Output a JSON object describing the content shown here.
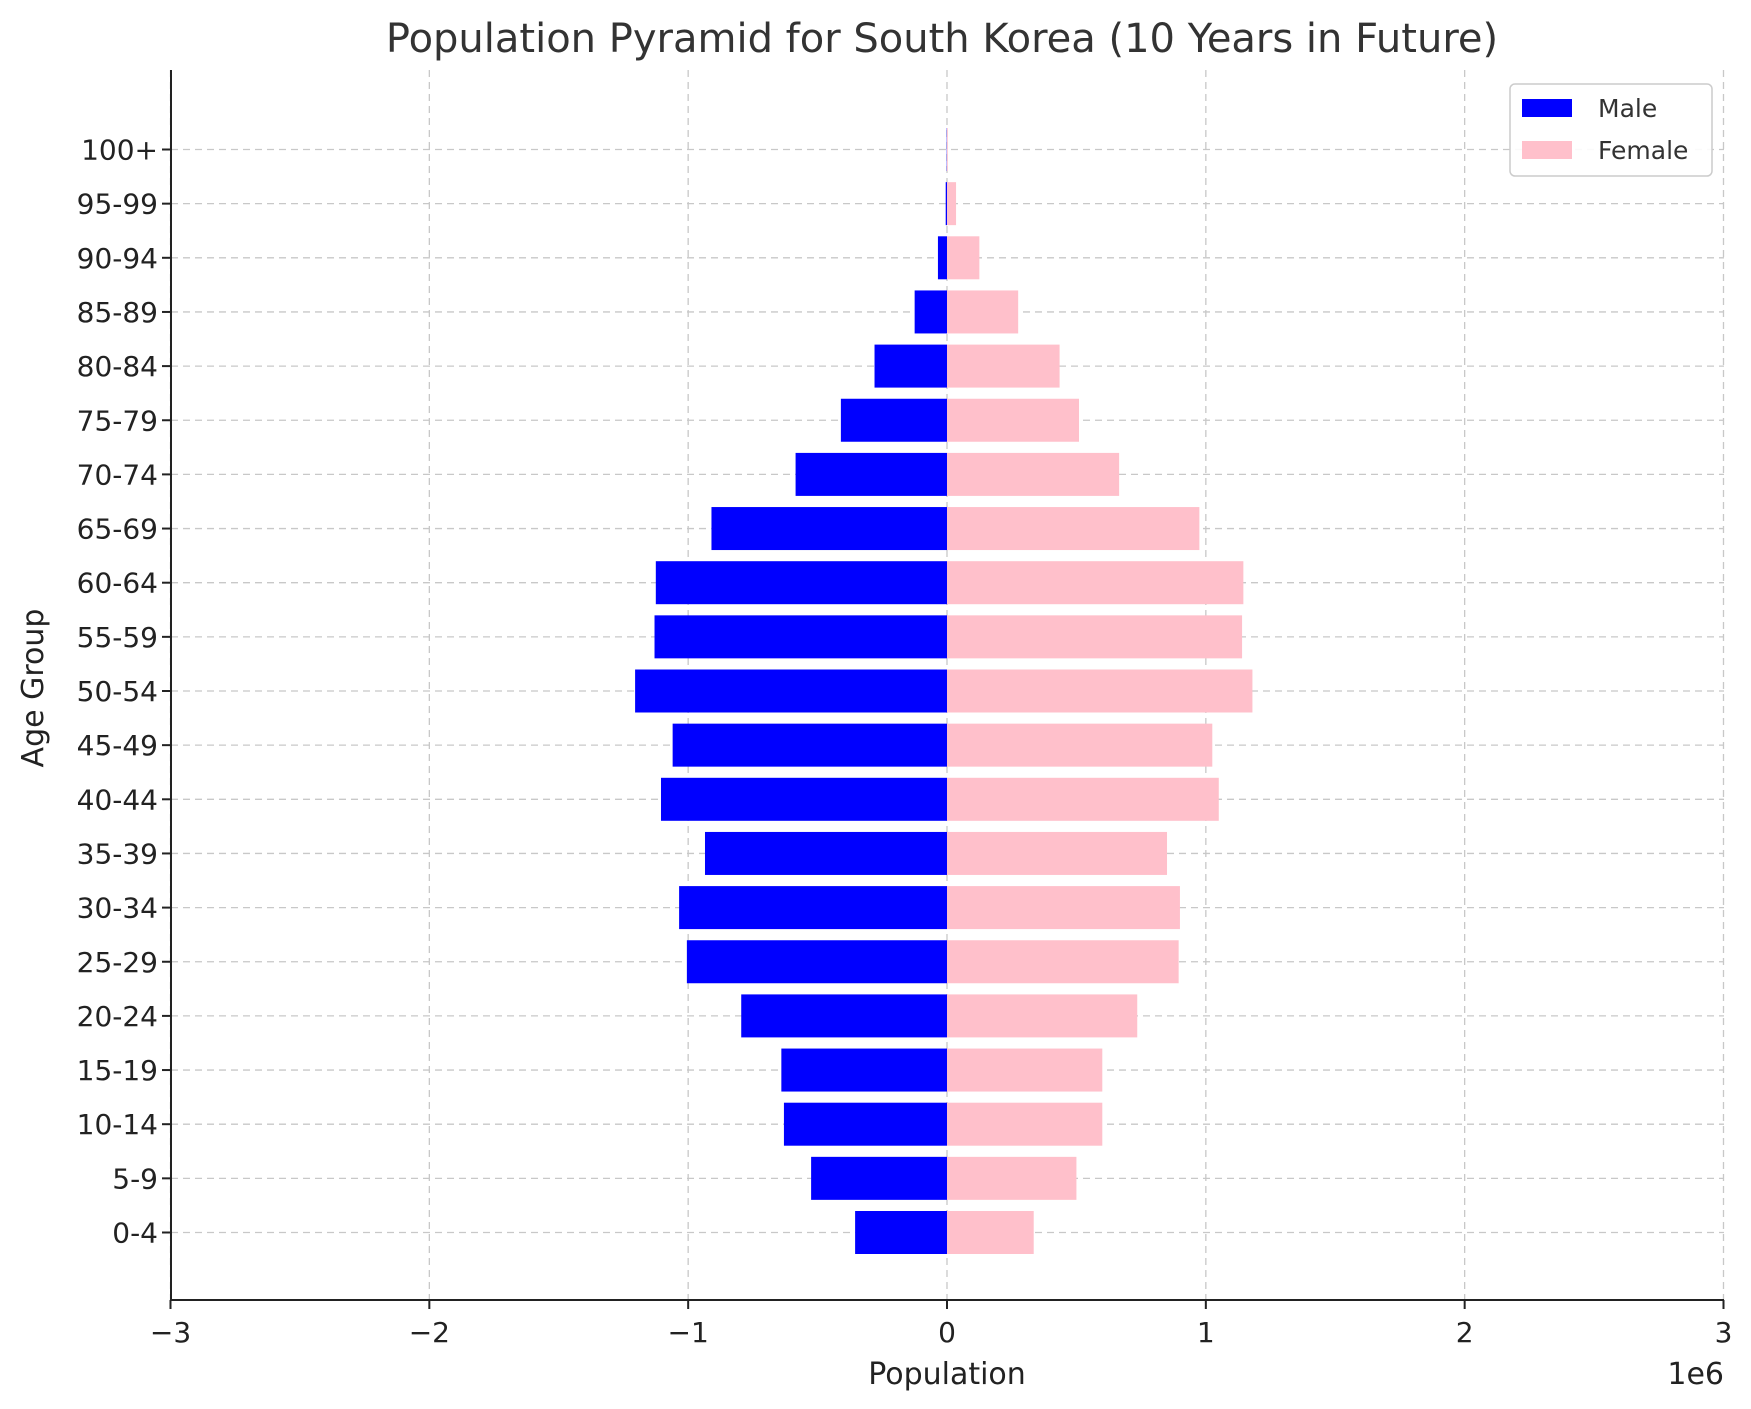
{
  "chart_data": {
    "type": "bar",
    "orientation": "horizontal",
    "title": "Population Pyramid for South Korea (10 Years in Future)",
    "xlabel": "Population",
    "ylabel": "Age Group",
    "x_scale_label": "1e6",
    "xlim": [
      -3000000,
      3000000
    ],
    "xticks": [
      -3,
      -2,
      -1,
      0,
      1,
      2,
      3
    ],
    "xtick_labels": [
      "−3",
      "−2",
      "−1",
      "0",
      "1",
      "2",
      "3"
    ],
    "grid": true,
    "legend_position": "top-right",
    "categories": [
      "0-4",
      "5-9",
      "10-14",
      "15-19",
      "20-24",
      "25-29",
      "30-34",
      "35-39",
      "40-44",
      "45-49",
      "50-54",
      "55-59",
      "60-64",
      "65-69",
      "70-74",
      "75-79",
      "80-84",
      "85-89",
      "90-94",
      "95-99",
      "100+"
    ],
    "series": [
      {
        "name": "Male",
        "color": "#0000ff",
        "values": [
          -355000,
          -525000,
          -630000,
          -640000,
          -795000,
          -1005000,
          -1035000,
          -935000,
          -1105000,
          -1060000,
          -1205000,
          -1130000,
          -1125000,
          -910000,
          -585000,
          -410000,
          -280000,
          -125000,
          -35000,
          -5000,
          -1000
        ]
      },
      {
        "name": "Female",
        "color": "#ffc0cb",
        "values": [
          335000,
          500000,
          600000,
          600000,
          735000,
          895000,
          900000,
          850000,
          1050000,
          1025000,
          1180000,
          1140000,
          1145000,
          975000,
          665000,
          510000,
          435000,
          275000,
          125000,
          35000,
          3000
        ]
      }
    ]
  }
}
